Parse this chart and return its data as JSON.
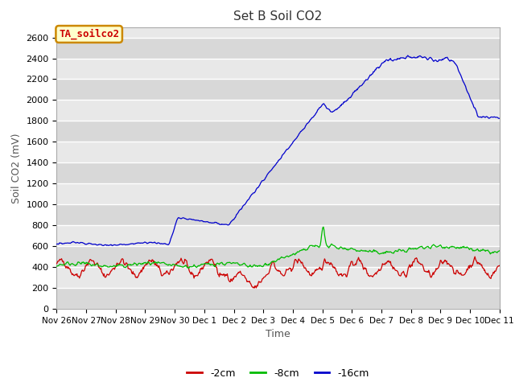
{
  "title": "Set B Soil CO2",
  "xlabel": "Time",
  "ylabel": "Soil CO2 (mV)",
  "ylim": [
    0,
    2700
  ],
  "yticks": [
    0,
    200,
    400,
    600,
    800,
    1000,
    1200,
    1400,
    1600,
    1800,
    2000,
    2200,
    2400,
    2600
  ],
  "bg_color": "#e8e8e8",
  "fig_color": "#ffffff",
  "line_colors": {
    "red": "#cc0000",
    "green": "#00bb00",
    "blue": "#0000cc"
  },
  "legend_label": "TA_soilco2",
  "legend_bg": "#ffffcc",
  "legend_border": "#cc8800",
  "x_tick_labels": [
    "Nov 26",
    "Nov 27",
    "Nov 28",
    "Nov 29",
    "Nov 30",
    "Dec 1",
    "Dec 2",
    "Dec 3",
    "Dec 4",
    "Dec 5",
    "Dec 6",
    "Dec 7",
    "Dec 8",
    "Dec 9",
    "Dec 10",
    "Dec 11"
  ],
  "series_labels": [
    "-2cm",
    "-8cm",
    "-16cm"
  ]
}
